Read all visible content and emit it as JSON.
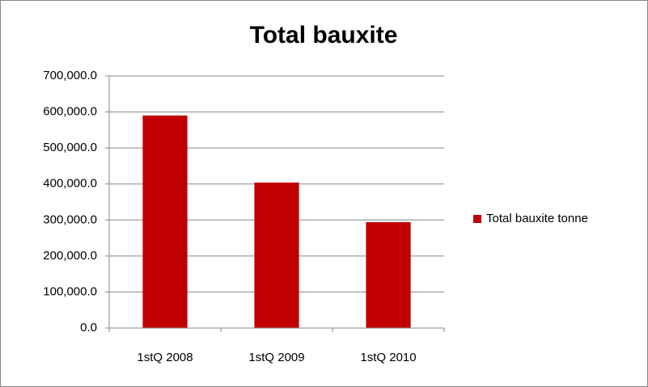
{
  "chart_data": {
    "type": "bar",
    "title": "Total bauxite",
    "categories": [
      "1stQ 2008",
      "1stQ 2009",
      "1stQ 2010"
    ],
    "series": [
      {
        "name": "Total bauxite tonne",
        "color": "#c00000",
        "values": [
          590000,
          404000,
          294000
        ]
      }
    ],
    "ylim": [
      0,
      700000
    ],
    "yticks": [
      {
        "value": 0,
        "label": "0.0"
      },
      {
        "value": 100000,
        "label": "100,000.0"
      },
      {
        "value": 200000,
        "label": "200,000.0"
      },
      {
        "value": 300000,
        "label": "300,000.0"
      },
      {
        "value": 400000,
        "label": "400,000.0"
      },
      {
        "value": 500000,
        "label": "500,000.0"
      },
      {
        "value": 600000,
        "label": "600,000.0"
      },
      {
        "value": 700000,
        "label": "700,000.0"
      }
    ],
    "grid": true,
    "legend": "right"
  }
}
